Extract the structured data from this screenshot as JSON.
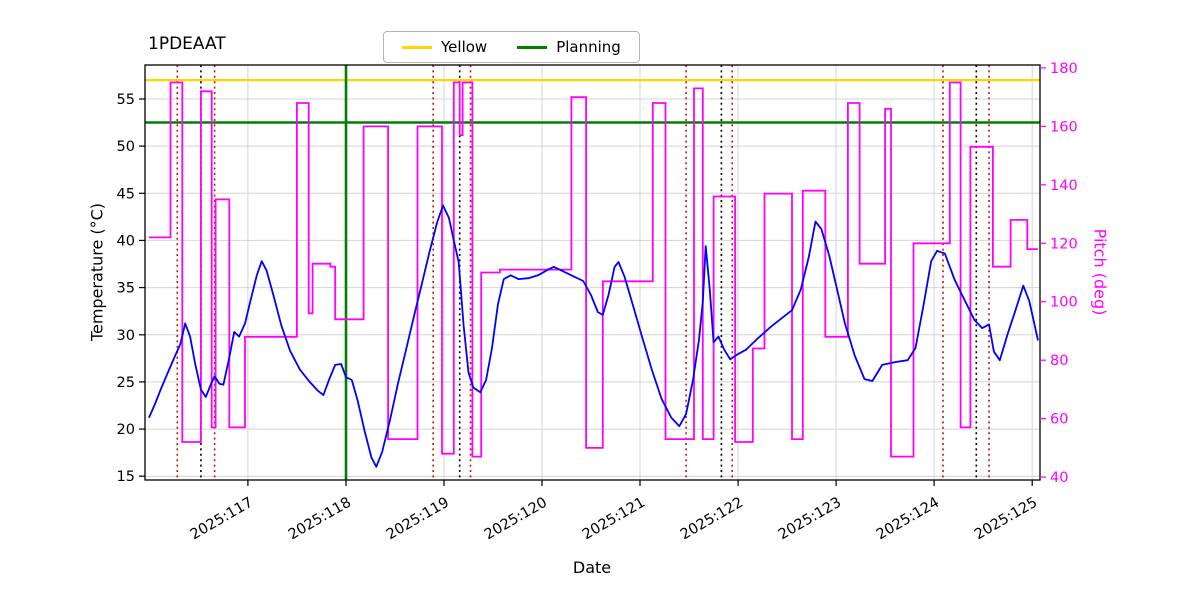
{
  "chart_data": {
    "type": "line",
    "title": "1PDEAAT",
    "xlabel": "Date",
    "ylabel_left": "Temperature (°C)",
    "ylabel_right": "Pitch (deg)",
    "x_tick_labels": [
      "2025:117",
      "2025:118",
      "2025:119",
      "2025:120",
      "2025:121",
      "2025:122",
      "2025:123",
      "2025:124",
      "2025:125"
    ],
    "x_tick_values": [
      117,
      118,
      119,
      120,
      121,
      122,
      123,
      124,
      125
    ],
    "yticks_left": [
      15,
      20,
      25,
      30,
      35,
      40,
      45,
      50,
      55
    ],
    "yticks_right": [
      40,
      60,
      80,
      100,
      120,
      140,
      160,
      180
    ],
    "xlim": [
      115.95,
      125.08
    ],
    "x_end": 125.06,
    "ylim_left": [
      14.6,
      58.6
    ],
    "ylim_right": [
      39,
      181
    ],
    "grid": true,
    "legend_position": "top-center",
    "legend": [
      {
        "label": "Yellow",
        "color": "#ffd700"
      },
      {
        "label": "Planning",
        "color": "#008000"
      }
    ],
    "yellow_limit": 57.0,
    "planning_limit": 52.5,
    "green_vline": 118.0,
    "red_dotted_vlines": [
      116.28,
      116.66,
      118.89,
      119.27,
      121.47,
      121.94,
      124.09,
      124.56
    ],
    "black_dotted_vlines": [
      116.52,
      119.16,
      121.83,
      124.43
    ],
    "colors": {
      "temperature": "#0000ff",
      "pitch": "#ff00ff",
      "yellow": "#ffd700",
      "planning": "#008000",
      "red_dotted": "#cc1100",
      "black_dotted": "#000000",
      "grid": "#d4d4d4",
      "axis": "#000000"
    },
    "series": {
      "temperature": {
        "name": "temperature",
        "axis": "left",
        "points": [
          [
            115.99,
            21.2
          ],
          [
            116.05,
            22.6
          ],
          [
            116.11,
            24.2
          ],
          [
            116.18,
            25.9
          ],
          [
            116.25,
            27.6
          ],
          [
            116.31,
            29.0
          ],
          [
            116.36,
            31.2
          ],
          [
            116.41,
            29.8
          ],
          [
            116.46,
            27.0
          ],
          [
            116.52,
            24.2
          ],
          [
            116.57,
            23.4
          ],
          [
            116.62,
            24.7
          ],
          [
            116.66,
            25.6
          ],
          [
            116.71,
            24.8
          ],
          [
            116.75,
            24.7
          ],
          [
            116.81,
            27.6
          ],
          [
            116.86,
            30.3
          ],
          [
            116.91,
            29.8
          ],
          [
            116.97,
            31.2
          ],
          [
            117.03,
            33.8
          ],
          [
            117.09,
            36.3
          ],
          [
            117.14,
            37.8
          ],
          [
            117.19,
            36.8
          ],
          [
            117.26,
            34.2
          ],
          [
            117.34,
            31.0
          ],
          [
            117.43,
            28.3
          ],
          [
            117.53,
            26.3
          ],
          [
            117.63,
            25.0
          ],
          [
            117.71,
            24.1
          ],
          [
            117.77,
            23.6
          ],
          [
            117.83,
            25.3
          ],
          [
            117.89,
            26.8
          ],
          [
            117.95,
            26.9
          ],
          [
            118.0,
            25.5
          ],
          [
            118.06,
            25.2
          ],
          [
            118.12,
            23.0
          ],
          [
            118.19,
            19.8
          ],
          [
            118.26,
            17.0
          ],
          [
            118.31,
            16.0
          ],
          [
            118.37,
            17.6
          ],
          [
            118.45,
            21.0
          ],
          [
            118.53,
            24.8
          ],
          [
            118.61,
            28.3
          ],
          [
            118.69,
            31.8
          ],
          [
            118.77,
            35.2
          ],
          [
            118.85,
            38.7
          ],
          [
            118.93,
            41.9
          ],
          [
            118.99,
            43.7
          ],
          [
            119.05,
            42.4
          ],
          [
            119.1,
            40.0
          ],
          [
            119.15,
            37.7
          ],
          [
            119.2,
            31.0
          ],
          [
            119.25,
            26.0
          ],
          [
            119.3,
            24.4
          ],
          [
            119.37,
            23.9
          ],
          [
            119.43,
            25.2
          ],
          [
            119.49,
            28.6
          ],
          [
            119.55,
            33.2
          ],
          [
            119.61,
            35.9
          ],
          [
            119.68,
            36.3
          ],
          [
            119.76,
            35.9
          ],
          [
            119.86,
            36.0
          ],
          [
            119.96,
            36.3
          ],
          [
            120.06,
            36.9
          ],
          [
            120.12,
            37.2
          ],
          [
            120.22,
            36.7
          ],
          [
            120.32,
            36.2
          ],
          [
            120.42,
            35.7
          ],
          [
            120.5,
            34.2
          ],
          [
            120.57,
            32.4
          ],
          [
            120.62,
            32.1
          ],
          [
            120.68,
            34.3
          ],
          [
            120.74,
            37.2
          ],
          [
            120.78,
            37.7
          ],
          [
            120.84,
            36.2
          ],
          [
            120.92,
            33.4
          ],
          [
            121.02,
            29.8
          ],
          [
            121.12,
            26.3
          ],
          [
            121.22,
            23.2
          ],
          [
            121.32,
            21.2
          ],
          [
            121.4,
            20.3
          ],
          [
            121.47,
            21.6
          ],
          [
            121.54,
            25.2
          ],
          [
            121.6,
            29.4
          ],
          [
            121.64,
            33.5
          ],
          [
            121.67,
            39.4
          ],
          [
            121.71,
            35.0
          ],
          [
            121.75,
            29.2
          ],
          [
            121.8,
            29.8
          ],
          [
            121.86,
            28.4
          ],
          [
            121.92,
            27.4
          ],
          [
            121.99,
            27.9
          ],
          [
            122.08,
            28.4
          ],
          [
            122.2,
            29.6
          ],
          [
            122.33,
            30.8
          ],
          [
            122.45,
            31.8
          ],
          [
            122.55,
            32.6
          ],
          [
            122.64,
            34.8
          ],
          [
            122.72,
            38.2
          ],
          [
            122.79,
            42.0
          ],
          [
            122.85,
            41.2
          ],
          [
            122.93,
            38.4
          ],
          [
            123.01,
            34.8
          ],
          [
            123.09,
            31.2
          ],
          [
            123.19,
            27.8
          ],
          [
            123.29,
            25.3
          ],
          [
            123.37,
            25.1
          ],
          [
            123.47,
            26.8
          ],
          [
            123.6,
            27.1
          ],
          [
            123.73,
            27.3
          ],
          [
            123.81,
            28.6
          ],
          [
            123.89,
            33.0
          ],
          [
            123.97,
            37.8
          ],
          [
            124.03,
            38.9
          ],
          [
            124.11,
            38.6
          ],
          [
            124.21,
            35.8
          ],
          [
            124.31,
            33.7
          ],
          [
            124.41,
            31.6
          ],
          [
            124.49,
            30.7
          ],
          [
            124.56,
            31.1
          ],
          [
            124.61,
            28.2
          ],
          [
            124.67,
            27.3
          ],
          [
            124.75,
            30.1
          ],
          [
            124.83,
            32.6
          ],
          [
            124.91,
            35.2
          ],
          [
            124.97,
            33.6
          ],
          [
            125.03,
            30.8
          ],
          [
            125.06,
            29.4
          ]
        ]
      },
      "pitch": {
        "name": "pitch",
        "axis": "right",
        "style": "step-post",
        "steps": [
          [
            115.99,
            122
          ],
          [
            116.21,
            175
          ],
          [
            116.33,
            52
          ],
          [
            116.52,
            172
          ],
          [
            116.63,
            57
          ],
          [
            116.67,
            135
          ],
          [
            116.81,
            57
          ],
          [
            116.97,
            88
          ],
          [
            117.5,
            168
          ],
          [
            117.62,
            96
          ],
          [
            117.66,
            113
          ],
          [
            117.84,
            112
          ],
          [
            117.89,
            94
          ],
          [
            118.18,
            160
          ],
          [
            118.43,
            53
          ],
          [
            118.73,
            160
          ],
          [
            118.98,
            48
          ],
          [
            119.1,
            175
          ],
          [
            119.16,
            157
          ],
          [
            119.19,
            175
          ],
          [
            119.29,
            47
          ],
          [
            119.38,
            110
          ],
          [
            119.57,
            111
          ],
          [
            120.3,
            170
          ],
          [
            120.45,
            50
          ],
          [
            120.62,
            107
          ],
          [
            121.13,
            168
          ],
          [
            121.26,
            53
          ],
          [
            121.55,
            173
          ],
          [
            121.64,
            53
          ],
          [
            121.75,
            136
          ],
          [
            121.97,
            52
          ],
          [
            122.15,
            84
          ],
          [
            122.27,
            137
          ],
          [
            122.55,
            53
          ],
          [
            122.66,
            138
          ],
          [
            122.89,
            88
          ],
          [
            123.12,
            168
          ],
          [
            123.24,
            113
          ],
          [
            123.5,
            166
          ],
          [
            123.56,
            47
          ],
          [
            123.79,
            120
          ],
          [
            124.16,
            175
          ],
          [
            124.27,
            57
          ],
          [
            124.37,
            153
          ],
          [
            124.6,
            112
          ],
          [
            124.78,
            128
          ],
          [
            124.95,
            118
          ]
        ]
      }
    }
  }
}
